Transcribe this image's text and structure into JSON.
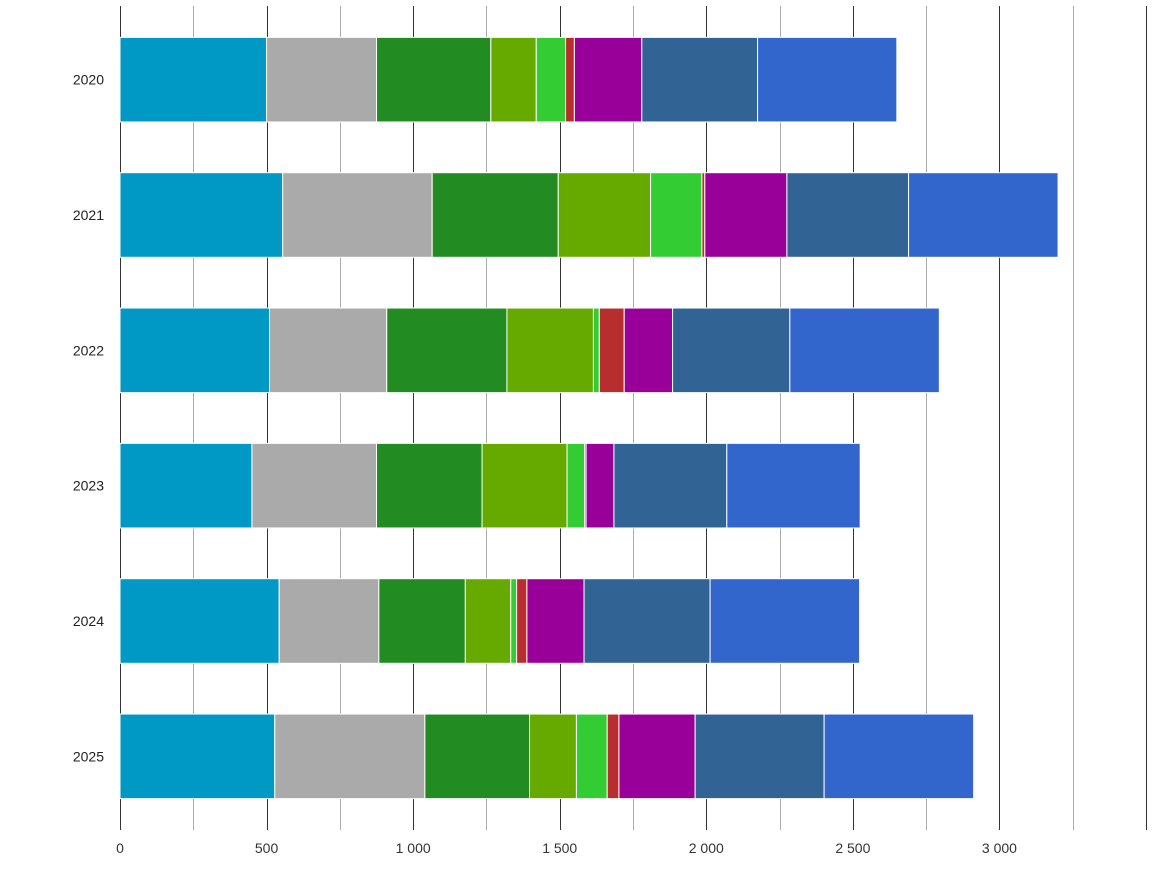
{
  "chart_data": {
    "type": "bar",
    "orientation": "horizontal",
    "stacked": true,
    "categories": [
      "2020",
      "2021",
      "2022",
      "2023",
      "2024",
      "2025"
    ],
    "xlim": [
      0,
      3500
    ],
    "x_ticks": [
      {
        "value": 0,
        "label": "0"
      },
      {
        "value": 500,
        "label": "500"
      },
      {
        "value": 1000,
        "label": "1 000"
      },
      {
        "value": 1500,
        "label": "1 500"
      },
      {
        "value": 2000,
        "label": "2 000"
      },
      {
        "value": 2500,
        "label": "2 500"
      },
      {
        "value": 3000,
        "label": "3 000"
      }
    ],
    "grid": true,
    "series": [
      {
        "color": "#0099c6",
        "values": [
          500,
          555,
          510,
          450,
          543,
          528
        ]
      },
      {
        "color": "#aaaaaa",
        "values": [
          375,
          510,
          400,
          425,
          340,
          512
        ]
      },
      {
        "color": "#228b22",
        "values": [
          390,
          430,
          410,
          360,
          295,
          357
        ]
      },
      {
        "color": "#66aa00",
        "values": [
          155,
          315,
          295,
          290,
          155,
          160
        ]
      },
      {
        "color": "#33cc33",
        "values": [
          100,
          175,
          20,
          60,
          20,
          105
        ]
      },
      {
        "color": "#b82e2e",
        "values": [
          30,
          10,
          85,
          5,
          35,
          40
        ]
      },
      {
        "color": "#990099",
        "values": [
          230,
          280,
          165,
          95,
          195,
          260
        ]
      },
      {
        "color": "#316395",
        "values": [
          395,
          415,
          400,
          385,
          430,
          440
        ]
      },
      {
        "color": "#3366cc",
        "values": [
          475,
          510,
          510,
          455,
          510,
          510
        ]
      }
    ]
  }
}
